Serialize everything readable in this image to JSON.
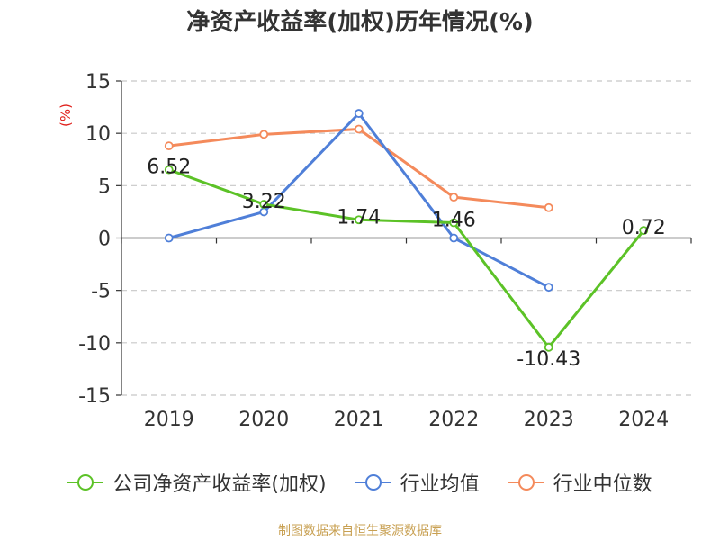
{
  "chart_data": {
    "type": "line",
    "title": "净资产收益率(加权)历年情况(%)",
    "ylabel": "(%)",
    "xlabel": "",
    "categories": [
      "2019",
      "2020",
      "2021",
      "2022",
      "2023",
      "2024"
    ],
    "ylim": [
      -15,
      15
    ],
    "yticks": [
      15,
      10,
      5,
      0,
      -5,
      -10,
      -15
    ],
    "grid": true,
    "legend_position": "bottom",
    "series": [
      {
        "name": "公司净资产收益率(加权)",
        "color": "#5cc227",
        "values": [
          6.52,
          3.22,
          1.74,
          1.46,
          -10.43,
          0.72
        ],
        "labels": [
          "6.52",
          "3.22",
          "1.74",
          "1.46",
          "-10.43",
          "0.72"
        ]
      },
      {
        "name": "行业均值",
        "color": "#4f7fd8",
        "values": [
          0.0,
          2.5,
          11.9,
          0.0,
          -4.7,
          null
        ]
      },
      {
        "name": "行业中位数",
        "color": "#f48a5b",
        "values": [
          8.8,
          9.9,
          10.4,
          3.9,
          2.9,
          null
        ]
      }
    ]
  },
  "footer": {
    "source": "制图数据来自恒生聚源数据库"
  }
}
